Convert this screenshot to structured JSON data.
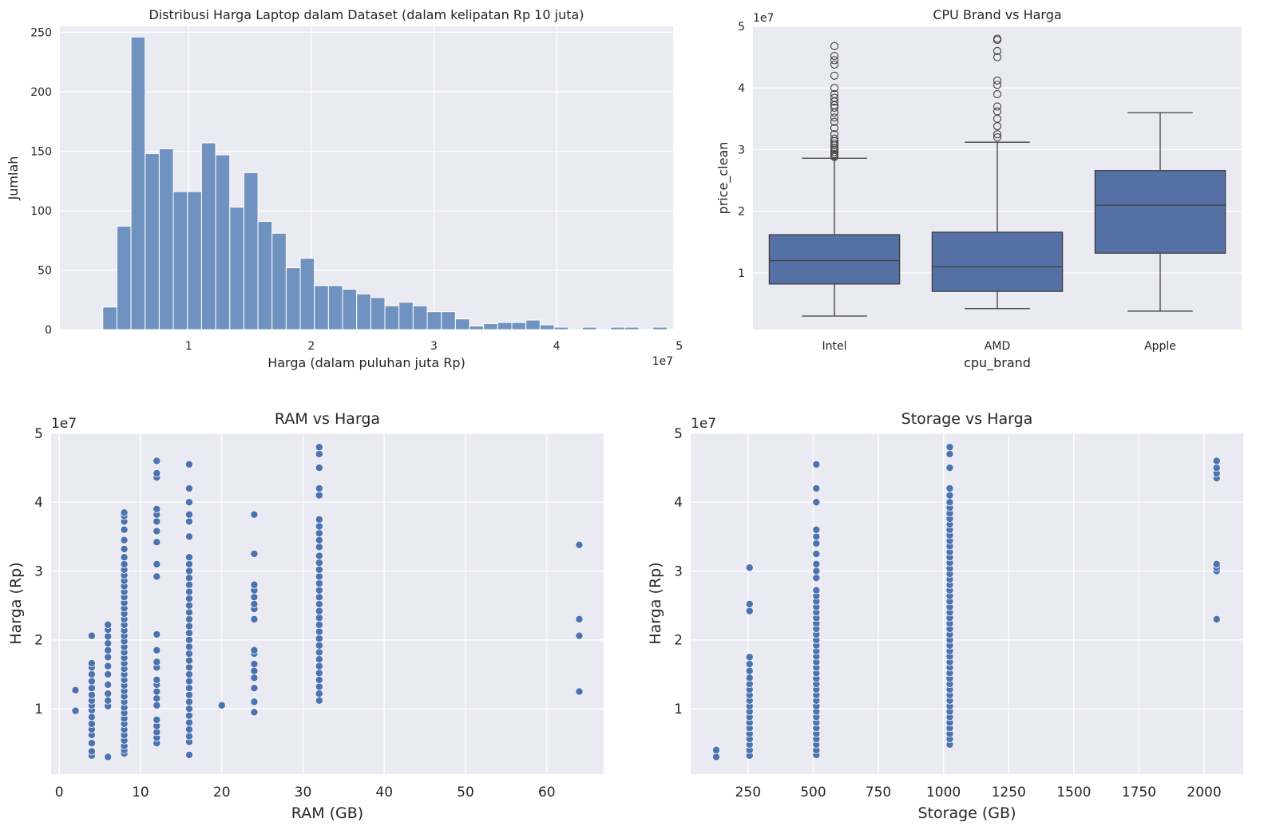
{
  "chart_data": [
    {
      "id": "hist",
      "type": "bar",
      "title": "Distribusi Harga Laptop dalam Dataset (dalam kelipatan Rp 10 juta)",
      "xlabel": "Harga (dalam puluhan juta Rp)",
      "ylabel": "Jumlah",
      "x_offset_label": "1e7",
      "xlim": [
        -0.05,
        4.95
      ],
      "ylim": [
        0,
        255
      ],
      "xticks": [
        1,
        2,
        3,
        4,
        5
      ],
      "yticks": [
        0,
        50,
        100,
        150,
        200,
        250
      ],
      "bin_start": 0.3,
      "bin_width": 0.115,
      "values": [
        19,
        87,
        246,
        148,
        152,
        116,
        116,
        157,
        147,
        103,
        132,
        91,
        81,
        52,
        60,
        37,
        37,
        34,
        30,
        27,
        20,
        23,
        20,
        15,
        15,
        9,
        3,
        5,
        6,
        6,
        8,
        4,
        2,
        0,
        2,
        0,
        2,
        2,
        0,
        2
      ],
      "bar_color": "#7092c0"
    },
    {
      "id": "box",
      "type": "box",
      "title": "CPU Brand vs Harga",
      "xlabel": "cpu_brand",
      "ylabel": "price_clean",
      "y_offset_label": "1e7",
      "ylim": [
        0.08,
        5.0
      ],
      "yticks": [
        1,
        2,
        3,
        4,
        5
      ],
      "categories": [
        "Intel",
        "AMD",
        "Apple"
      ],
      "boxes": [
        {
          "q1": 0.82,
          "median": 1.2,
          "q3": 1.62,
          "whislo": 0.3,
          "whishi": 2.86,
          "fliers": [
            2.88,
            2.9,
            2.93,
            2.96,
            3.0,
            3.03,
            3.07,
            3.1,
            3.14,
            3.18,
            3.25,
            3.35,
            3.45,
            3.52,
            3.6,
            3.68,
            3.72,
            3.78,
            3.84,
            3.9,
            4.0,
            4.2,
            4.38,
            4.45,
            4.52,
            4.68
          ]
        },
        {
          "q1": 0.7,
          "median": 1.1,
          "q3": 1.66,
          "whislo": 0.42,
          "whishi": 3.12,
          "fliers": [
            3.2,
            3.25,
            3.38,
            3.5,
            3.62,
            3.7,
            3.9,
            4.05,
            4.12,
            4.5,
            4.6,
            4.78,
            4.8
          ]
        },
        {
          "q1": 1.32,
          "median": 2.1,
          "q3": 2.66,
          "whislo": 0.38,
          "whishi": 3.6,
          "fliers": []
        }
      ],
      "box_color": "#5470a4"
    },
    {
      "id": "ram",
      "type": "scatter",
      "title": "RAM vs Harga",
      "xlabel": "RAM (GB)",
      "ylabel": "Harga (Rp)",
      "y_offset_label": "1e7",
      "xlim": [
        -1,
        67
      ],
      "ylim": [
        0.05,
        5.0
      ],
      "xticks": [
        0,
        10,
        20,
        30,
        40,
        50,
        60
      ],
      "yticks": [
        1,
        2,
        3,
        4,
        5
      ],
      "groups": [
        {
          "x": 2,
          "y": [
            0.97,
            1.27
          ]
        },
        {
          "x": 4,
          "y": [
            0.32,
            0.38,
            0.5,
            0.62,
            0.7,
            0.78,
            0.88,
            0.98,
            1.05,
            1.12,
            1.2,
            1.3,
            1.4,
            1.5,
            1.6,
            1.66,
            2.06
          ]
        },
        {
          "x": 6,
          "y": [
            0.3,
            1.04,
            1.12,
            1.22,
            1.35,
            1.5,
            1.62,
            1.75,
            1.85,
            1.95,
            2.05,
            2.15,
            2.22
          ]
        },
        {
          "x": 8,
          "y": [
            0.35,
            0.4,
            0.46,
            0.54,
            0.62,
            0.7,
            0.78,
            0.86,
            0.94,
            1.02,
            1.1,
            1.18,
            1.26,
            1.34,
            1.42,
            1.5,
            1.58,
            1.66,
            1.74,
            1.82,
            1.9,
            1.98,
            2.06,
            2.14,
            2.22,
            2.3,
            2.38,
            2.46,
            2.54,
            2.62,
            2.7,
            2.78,
            2.86,
            2.94,
            3.02,
            3.1,
            3.2,
            3.32,
            3.45,
            3.6,
            3.72,
            3.8,
            3.85
          ]
        },
        {
          "x": 12,
          "y": [
            0.5,
            0.58,
            0.66,
            0.75,
            0.84,
            1.05,
            1.15,
            1.25,
            1.35,
            1.42,
            1.6,
            1.68,
            1.85,
            2.08,
            2.92,
            3.1,
            3.42,
            3.58,
            3.72,
            3.82,
            3.9,
            4.36,
            4.42,
            4.6
          ]
        },
        {
          "x": 16,
          "y": [
            0.33,
            0.52,
            0.6,
            0.7,
            0.8,
            0.9,
            1.0,
            1.1,
            1.2,
            1.3,
            1.4,
            1.5,
            1.6,
            1.7,
            1.8,
            1.9,
            2.0,
            2.1,
            2.2,
            2.3,
            2.4,
            2.5,
            2.6,
            2.7,
            2.8,
            2.9,
            3.0,
            3.1,
            3.2,
            3.5,
            3.72,
            3.82,
            4.0,
            4.2,
            4.55
          ]
        },
        {
          "x": 20,
          "y": [
            1.05
          ]
        },
        {
          "x": 24,
          "y": [
            0.95,
            1.1,
            1.3,
            1.45,
            1.55,
            1.65,
            1.8,
            1.85,
            2.3,
            2.45,
            2.52,
            2.62,
            2.72,
            2.8,
            3.25,
            3.82
          ]
        },
        {
          "x": 32,
          "y": [
            1.12,
            1.22,
            1.32,
            1.42,
            1.52,
            1.62,
            1.72,
            1.82,
            1.92,
            2.02,
            2.12,
            2.22,
            2.32,
            2.42,
            2.52,
            2.62,
            2.72,
            2.82,
            2.92,
            3.02,
            3.12,
            3.22,
            3.35,
            3.45,
            3.55,
            3.65,
            3.75,
            4.1,
            4.2,
            4.5,
            4.7,
            4.8
          ]
        },
        {
          "x": 64,
          "y": [
            1.25,
            2.06,
            2.3,
            3.38
          ]
        }
      ],
      "point_color": "#4c72b0"
    },
    {
      "id": "storage",
      "type": "scatter",
      "title": "Storage vs Harga",
      "xlabel": "Storage (GB)",
      "ylabel": "Harga (Rp)",
      "y_offset_label": "1e7",
      "xlim": [
        30,
        2150
      ],
      "ylim": [
        0.05,
        5.0
      ],
      "xticks": [
        250,
        500,
        750,
        1000,
        1250,
        1500,
        1750,
        2000
      ],
      "yticks": [
        1,
        2,
        3,
        4,
        5
      ],
      "groups": [
        {
          "x": 128,
          "y": [
            0.3,
            0.4
          ]
        },
        {
          "x": 256,
          "y": [
            0.32,
            0.4,
            0.48,
            0.56,
            0.64,
            0.72,
            0.8,
            0.88,
            0.96,
            1.04,
            1.12,
            1.2,
            1.28,
            1.36,
            1.45,
            1.55,
            1.65,
            1.75,
            2.42,
            2.52,
            3.05
          ]
        },
        {
          "x": 512,
          "y": [
            0.33,
            0.4,
            0.48,
            0.56,
            0.64,
            0.72,
            0.8,
            0.88,
            0.96,
            1.04,
            1.12,
            1.2,
            1.28,
            1.36,
            1.44,
            1.52,
            1.6,
            1.68,
            1.76,
            1.84,
            1.92,
            2.0,
            2.08,
            2.16,
            2.24,
            2.32,
            2.4,
            2.48,
            2.56,
            2.64,
            2.72,
            2.9,
            3.0,
            3.1,
            3.25,
            3.4,
            3.5,
            3.6,
            4.0,
            4.2,
            4.55
          ]
        },
        {
          "x": 1024,
          "y": [
            0.48,
            0.56,
            0.64,
            0.72,
            0.8,
            0.88,
            0.96,
            1.04,
            1.12,
            1.2,
            1.28,
            1.36,
            1.44,
            1.52,
            1.6,
            1.68,
            1.76,
            1.84,
            1.92,
            2.0,
            2.08,
            2.16,
            2.24,
            2.32,
            2.4,
            2.48,
            2.56,
            2.64,
            2.72,
            2.8,
            2.88,
            2.96,
            3.04,
            3.12,
            3.2,
            3.28,
            3.36,
            3.44,
            3.52,
            3.6,
            3.68,
            3.76,
            3.84,
            3.92,
            4.0,
            4.1,
            4.2,
            4.5,
            4.7,
            4.8
          ]
        },
        {
          "x": 2048,
          "y": [
            2.3,
            3.0,
            3.05,
            3.1,
            4.35,
            4.42,
            4.5,
            4.6
          ]
        }
      ],
      "point_color": "#4c72b0"
    }
  ]
}
